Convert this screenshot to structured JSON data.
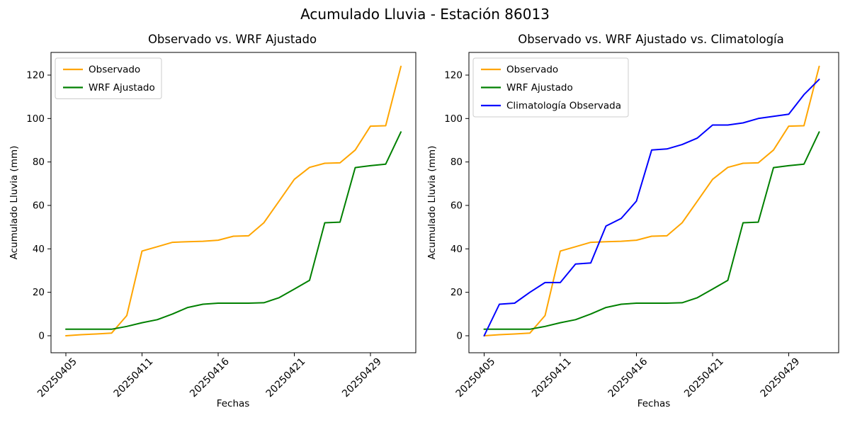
{
  "figure": {
    "title": "Acumulado Lluvia - Estación 86013",
    "background": "#ffffff"
  },
  "chart_data": [
    {
      "type": "line",
      "title": "Observado vs. WRF Ajustado",
      "xlabel": "Fechas",
      "ylabel": "Acumulado Lluvia (mm)",
      "grid": false,
      "legend_position": "upper left",
      "n_points": 23,
      "y_ticks": [
        0,
        20,
        40,
        60,
        80,
        100,
        120
      ],
      "ylim": [
        -7,
        132
      ],
      "x_tick_indexes": [
        0,
        5,
        10,
        15,
        20
      ],
      "x_tick_labels": [
        "20250405",
        "20250411",
        "20250416",
        "20250421",
        "20250429"
      ],
      "series": [
        {
          "name": "Observado",
          "color": "#FFA500",
          "values": [
            0,
            0.5,
            0.8,
            1.2,
            9.3,
            39,
            41,
            43,
            43.3,
            43.5,
            44,
            45.8,
            46,
            52,
            62,
            72,
            77.5,
            79.4,
            79.6,
            85.5,
            96.5,
            96.7,
            124
          ]
        },
        {
          "name": "WRF Ajustado",
          "color": "#008000",
          "values": [
            3,
            3,
            3,
            3,
            4.3,
            6,
            7.4,
            10,
            13,
            14.5,
            15,
            15,
            15,
            15.2,
            17.5,
            21.5,
            25.5,
            52,
            52.3,
            77.4,
            78.3,
            79,
            93.8
          ]
        }
      ]
    },
    {
      "type": "line",
      "title": "Observado vs. WRF Ajustado vs. Climatología",
      "xlabel": "Fechas",
      "ylabel": "Acumulado Lluvia (mm)",
      "grid": false,
      "legend_position": "upper left",
      "n_points": 23,
      "y_ticks": [
        0,
        20,
        40,
        60,
        80,
        100,
        120
      ],
      "ylim": [
        -7,
        132
      ],
      "x_tick_indexes": [
        0,
        5,
        10,
        15,
        20
      ],
      "x_tick_labels": [
        "20250405",
        "20250411",
        "20250416",
        "20250421",
        "20250429"
      ],
      "series": [
        {
          "name": "Observado",
          "color": "#FFA500",
          "values": [
            0,
            0.5,
            0.8,
            1.2,
            9.3,
            39,
            41,
            43,
            43.3,
            43.5,
            44,
            45.8,
            46,
            52,
            62,
            72,
            77.5,
            79.4,
            79.6,
            85.5,
            96.5,
            96.7,
            124
          ]
        },
        {
          "name": "WRF Ajustado",
          "color": "#008000",
          "values": [
            3,
            3,
            3,
            3,
            4.3,
            6,
            7.4,
            10,
            13,
            14.5,
            15,
            15,
            15,
            15.2,
            17.5,
            21.5,
            25.5,
            52,
            52.3,
            77.4,
            78.3,
            79,
            93.8
          ]
        },
        {
          "name": "Climatología Observada",
          "color": "#0000FF",
          "values": [
            0,
            14.5,
            15,
            20,
            24.5,
            24.5,
            33,
            33.5,
            50.5,
            54,
            62,
            85.5,
            86,
            88,
            91,
            97,
            97,
            98,
            100,
            101,
            102,
            111,
            118
          ]
        }
      ]
    }
  ]
}
